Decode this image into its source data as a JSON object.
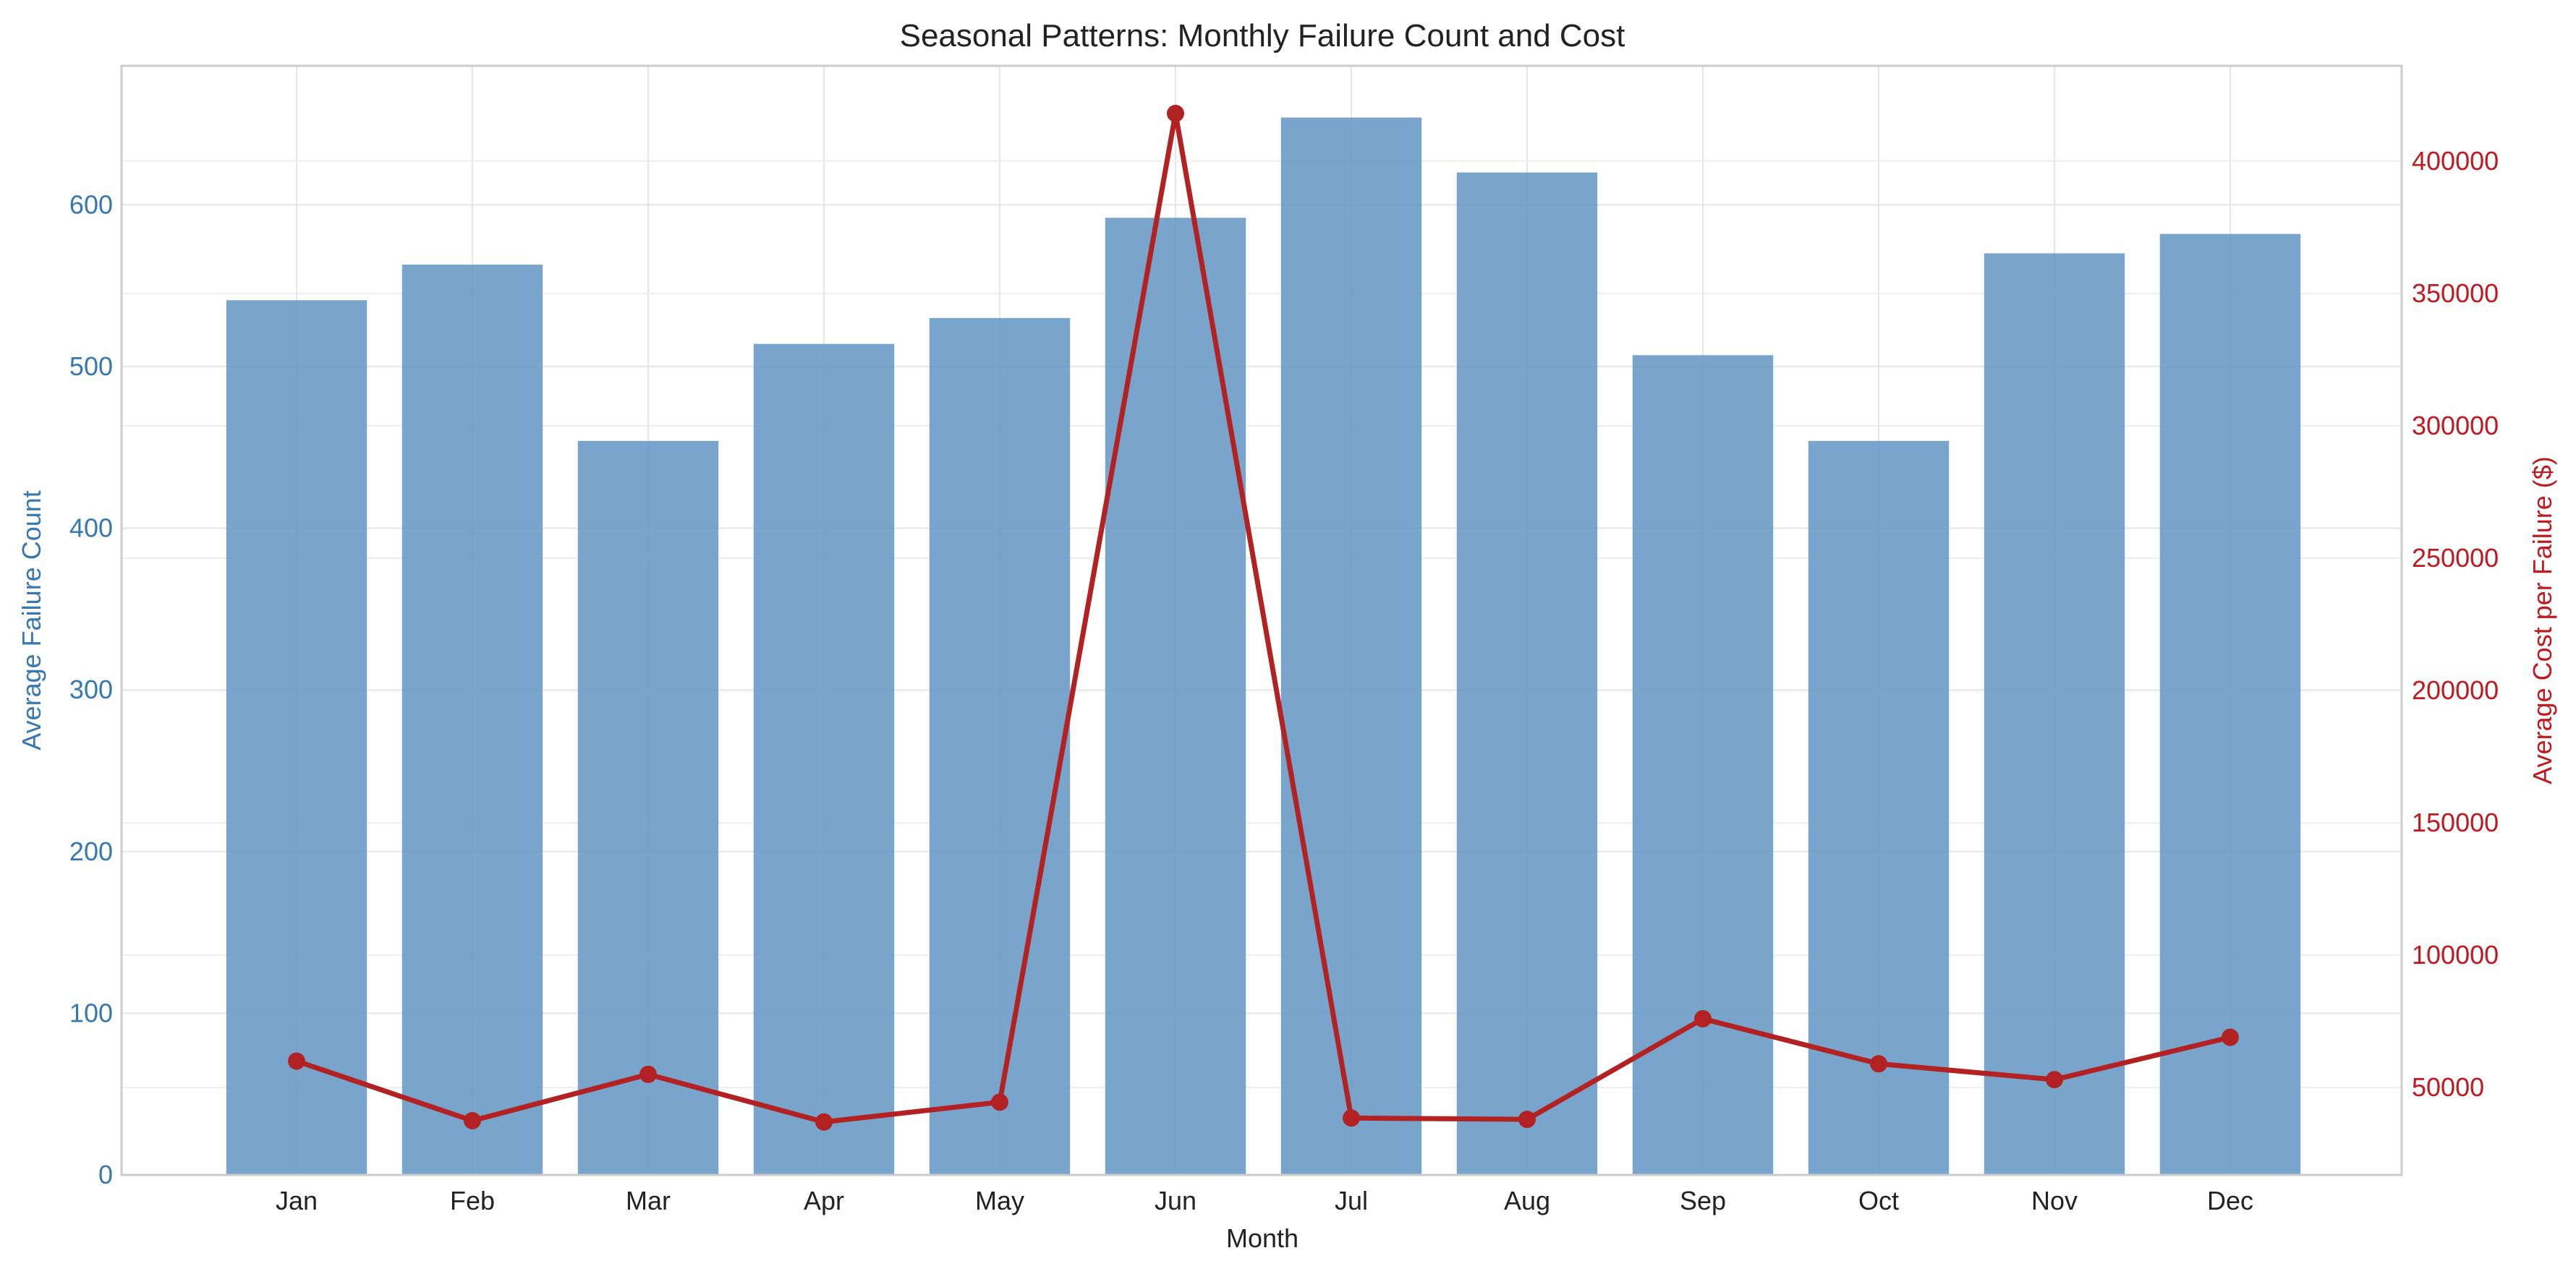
{
  "chart_data": {
    "type": "bar+line",
    "title": "Seasonal Patterns: Monthly Failure Count and Cost",
    "xlabel": "Month",
    "ylabel_left": "Average Failure Count",
    "ylabel_right": "Average Cost per Failure ($)",
    "categories": [
      "Jan",
      "Feb",
      "Mar",
      "Apr",
      "May",
      "Jun",
      "Jul",
      "Aug",
      "Sep",
      "Oct",
      "Nov",
      "Dec"
    ],
    "series": [
      {
        "type": "bar",
        "axis": "left",
        "color": "#6a9ac6",
        "values": [
          541,
          563,
          454,
          514,
          530,
          592,
          654,
          620,
          507,
          454,
          570,
          582
        ]
      },
      {
        "type": "line",
        "axis": "right",
        "color": "#b22222",
        "values": [
          60000,
          37500,
          55000,
          37000,
          44500,
          418000,
          38500,
          38000,
          76000,
          59000,
          53000,
          69000
        ]
      }
    ],
    "ylim_left": [
      0,
      686
    ],
    "yticks_left": [
      0,
      100,
      200,
      300,
      400,
      500,
      600
    ],
    "ylim_right": [
      17000,
      436000
    ],
    "yticks_right": [
      50000,
      100000,
      150000,
      200000,
      250000,
      300000,
      350000,
      400000
    ],
    "left_axis_color": "#3778b0",
    "right_axis_color": "#c0191f",
    "grid": true
  }
}
